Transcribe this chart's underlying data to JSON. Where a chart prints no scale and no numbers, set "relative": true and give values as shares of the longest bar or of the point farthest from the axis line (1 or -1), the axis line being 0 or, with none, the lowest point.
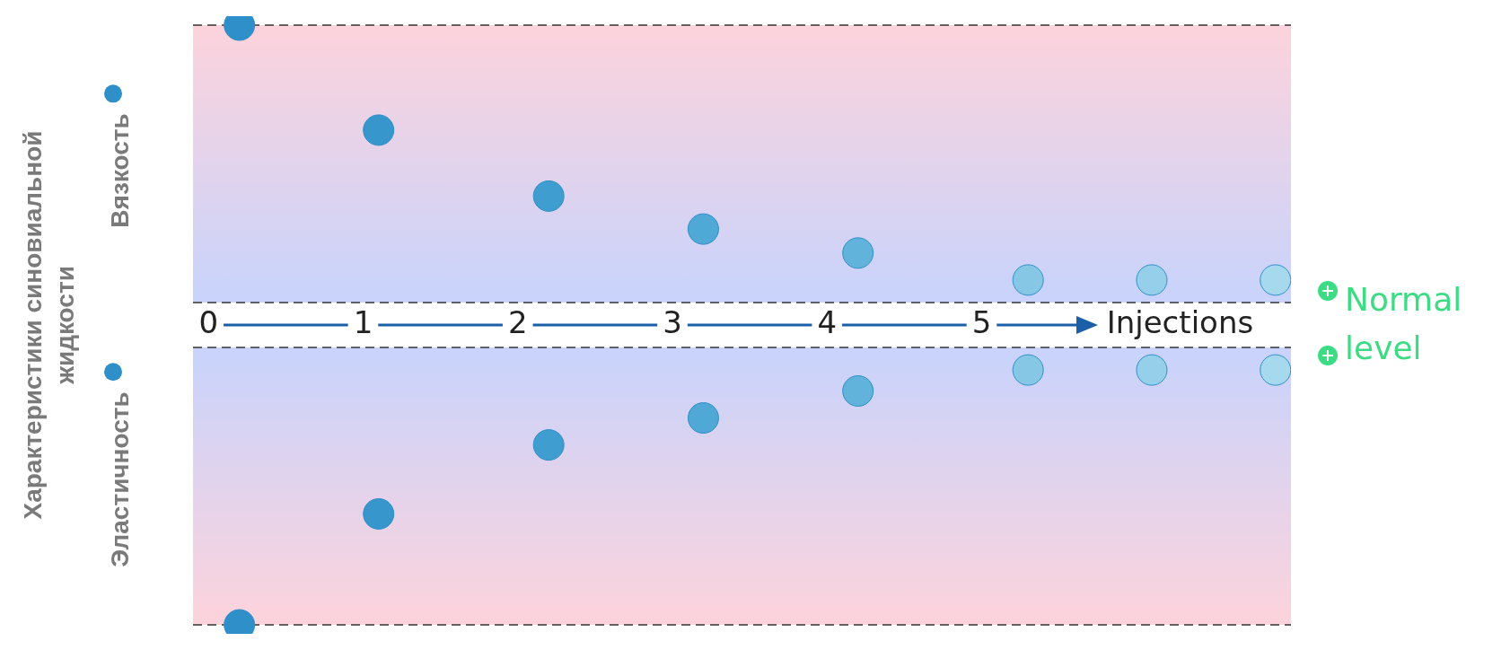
{
  "chart_data": {
    "type": "scatter",
    "relative": true,
    "xlabel": "Injections",
    "ylabel": "Характеристики синовиальной жидкости",
    "x": [
      0.2,
      1.1,
      2.2,
      3.2,
      4.2,
      5.3,
      6.1,
      6.9
    ],
    "xlim": [
      -0.1,
      7
    ],
    "xticks": [
      0,
      1,
      2,
      3,
      4,
      5
    ],
    "tick_labels": "x",
    "marker": "circle",
    "legend": "left",
    "series": [
      {
        "name": "Вязкость",
        "color": "#2f8fc8",
        "colors": [
          "#2f8fc8",
          "#3796cc",
          "#3f9dd0",
          "#4fa8d6",
          "#62b3dc",
          "#86c7e6",
          "#95cfea",
          "#a6d8ee"
        ],
        "values": [
          1,
          0.65,
          0.43,
          0.32,
          0.24,
          0.15,
          0.15,
          0.15
        ]
      },
      {
        "name": "Эластичность",
        "color": "#2f8fc8",
        "colors": [
          "#2f8fc8",
          "#3796cc",
          "#3f9dd0",
          "#4fa8d6",
          "#62b3dc",
          "#86c7e6",
          "#95cfea",
          "#a6d8ee"
        ],
        "values": [
          -1,
          -0.63,
          -0.4,
          -0.31,
          -0.22,
          -0.15,
          -0.15,
          -0.15
        ]
      }
    ],
    "ref_lines": [
      {
        "axis": "y",
        "value": 1,
        "color": "#333333",
        "line_style": "dashed"
      },
      {
        "axis": "y",
        "value": -1,
        "color": "#333333",
        "line_style": "dashed"
      },
      {
        "axis": "y",
        "value": 0.075,
        "color": "#333333",
        "line_style": "dashed"
      },
      {
        "axis": "y",
        "value": -0.075,
        "color": "#333333",
        "line_style": "dashed"
      }
    ],
    "bands": [
      {
        "axis": "y",
        "from": -0.075,
        "to": 0.075,
        "label": "Normal level",
        "color": "#ffffff"
      }
    ]
  }
}
